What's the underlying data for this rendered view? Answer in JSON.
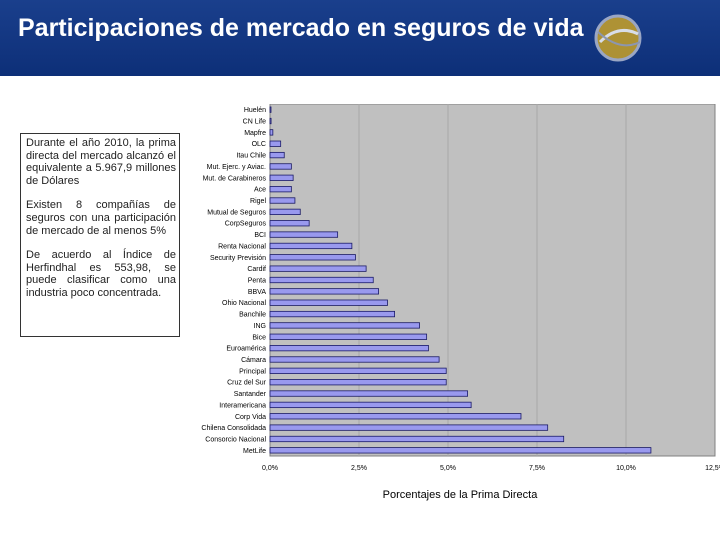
{
  "title": "Participaciones de mercado en seguros de vida",
  "colors": {
    "header": "#0d2f78",
    "plot_bg": "#c0c0c0",
    "bar_fill": "#9999ee",
    "bar_stroke": "#1a1a66"
  },
  "textbox": {
    "p1": "Durante el año 2010, la prima directa del mercado alcanzó el equivalente a 5.967,9 millones de Dólares",
    "p2": "Existen 8 compañías de seguros con una participación de mercado de al menos 5%",
    "p3": "De acuerdo al Índice de Herfindhal es 553,98, se puede clasificar como una industria poco concentrada."
  },
  "chart_data": {
    "type": "bar",
    "orientation": "horizontal",
    "xlabel": "Porcentajes de la Prima Directa",
    "xlim": [
      0,
      12.5
    ],
    "xticks": [
      "0,0%",
      "2,5%",
      "5,0%",
      "7,5%",
      "10,0%",
      "12,5%"
    ],
    "grid": true,
    "categories": [
      "Huelén",
      "CN Life",
      "Mapfre",
      "OLC",
      "Itau Chile",
      "Mut. Ejerc. y Aviac.",
      "Mut. de Carabineros",
      "Ace",
      "Rigel",
      "Mutual de Seguros",
      "CorpSeguros",
      "BCI",
      "Renta Nacional",
      "Security Previsión",
      "Cardif",
      "Penta",
      "BBVA",
      "Ohio Nacional",
      "Banchile",
      "ING",
      "Bice",
      "Euroamérica",
      "Cámara",
      "Principal",
      "Cruz del Sur",
      "Santander",
      "Interamericana",
      "Corp Vida",
      "Chilena Consolidada",
      "Consorcio Nacional",
      "MetLife"
    ],
    "values": [
      0.02,
      0.03,
      0.08,
      0.3,
      0.4,
      0.6,
      0.65,
      0.6,
      0.7,
      0.85,
      1.1,
      1.9,
      2.3,
      2.4,
      2.7,
      2.9,
      3.05,
      3.3,
      3.5,
      4.2,
      4.4,
      4.45,
      4.75,
      4.95,
      4.95,
      5.55,
      5.65,
      7.05,
      7.8,
      8.25,
      10.7
    ]
  }
}
